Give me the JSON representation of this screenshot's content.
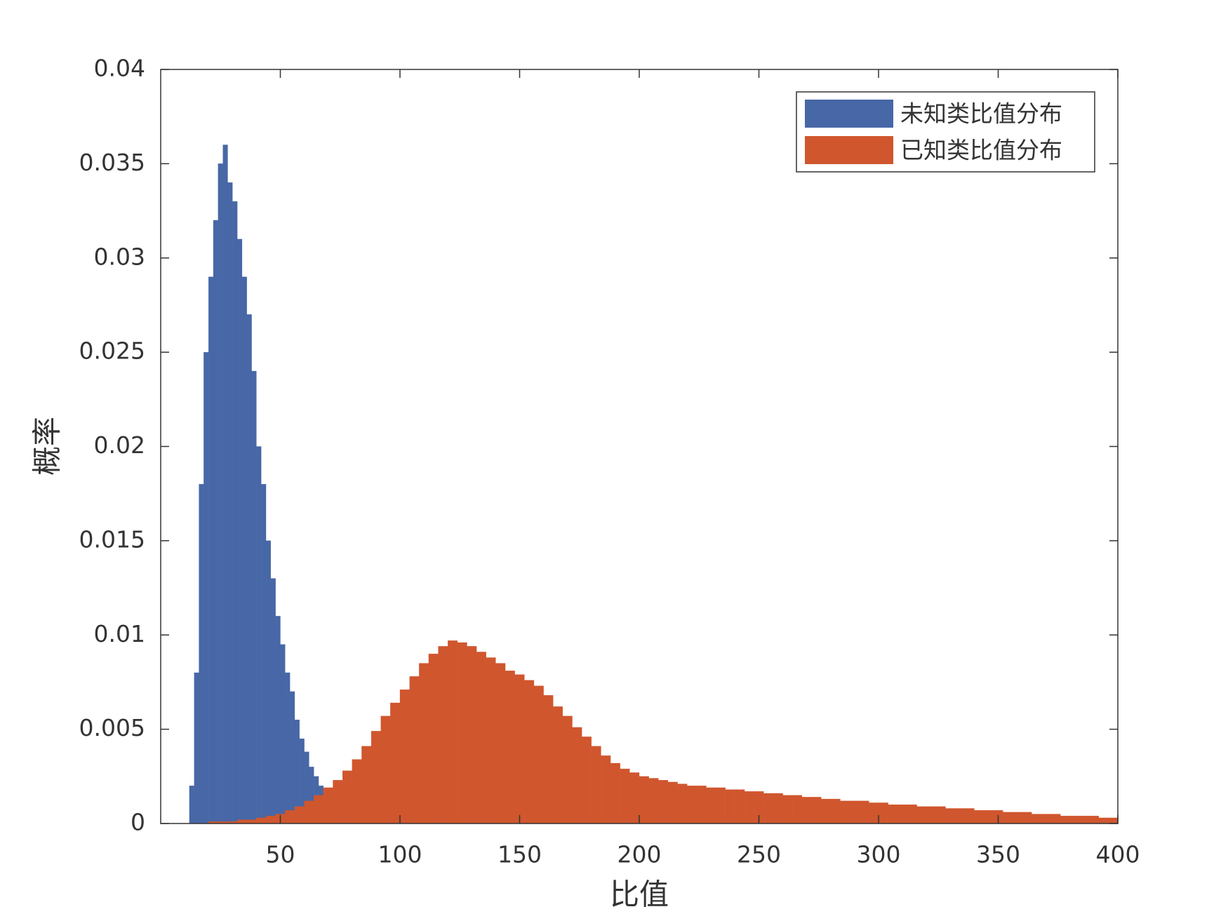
{
  "chart_data": {
    "type": "histogram",
    "xlabel": "比值",
    "ylabel": "概率",
    "xlim": [
      0,
      400
    ],
    "xticks": [
      50,
      100,
      150,
      200,
      250,
      300,
      350,
      400
    ],
    "ylim": [
      0,
      0.04
    ],
    "yticks": [
      0,
      0.005,
      0.01,
      0.015,
      0.02,
      0.025,
      0.03,
      0.035,
      0.04
    ],
    "legend": "upper right",
    "series": [
      {
        "name": "未知类比值分布",
        "color": "#4767a6",
        "bins": [
          12,
          14,
          16,
          18,
          20,
          22,
          24,
          26,
          28,
          30,
          32,
          34,
          36,
          38,
          40,
          42,
          44,
          46,
          48,
          50,
          52,
          54,
          56,
          58,
          60,
          62,
          64,
          66,
          68,
          70
        ],
        "values": [
          0.002,
          0.008,
          0.018,
          0.025,
          0.029,
          0.032,
          0.035,
          0.036,
          0.034,
          0.033,
          0.031,
          0.029,
          0.027,
          0.024,
          0.02,
          0.018,
          0.015,
          0.013,
          0.011,
          0.0095,
          0.008,
          0.007,
          0.0055,
          0.0045,
          0.0038,
          0.003,
          0.0025,
          0.002,
          0.0015
        ]
      },
      {
        "name": "已知类比值分布",
        "color": "#d0562e",
        "bins": [
          20,
          24,
          28,
          32,
          36,
          40,
          44,
          48,
          52,
          56,
          60,
          64,
          68,
          72,
          76,
          80,
          84,
          88,
          92,
          96,
          100,
          104,
          108,
          112,
          116,
          120,
          124,
          128,
          132,
          136,
          140,
          144,
          148,
          152,
          156,
          160,
          164,
          168,
          172,
          176,
          180,
          184,
          188,
          192,
          196,
          200,
          204,
          208,
          212,
          216,
          220,
          224,
          228,
          232,
          236,
          240,
          244,
          248,
          252,
          256,
          260,
          264,
          268,
          272,
          276,
          280,
          284,
          288,
          292,
          296,
          300,
          304,
          308,
          312,
          316,
          320,
          324,
          328,
          332,
          336,
          340,
          344,
          348,
          352,
          356,
          360,
          364,
          368,
          372,
          376,
          380,
          384,
          388,
          392,
          396,
          400
        ],
        "values": [
          0.0001,
          0.0001,
          0.0001,
          0.0002,
          0.0002,
          0.0003,
          0.0004,
          0.0005,
          0.0007,
          0.0009,
          0.0012,
          0.0015,
          0.0019,
          0.0023,
          0.0028,
          0.0034,
          0.0041,
          0.0049,
          0.0057,
          0.0064,
          0.0071,
          0.0078,
          0.0085,
          0.009,
          0.0094,
          0.0097,
          0.0096,
          0.0094,
          0.0091,
          0.0088,
          0.0085,
          0.0081,
          0.0079,
          0.0076,
          0.0073,
          0.0068,
          0.0062,
          0.0057,
          0.0051,
          0.0046,
          0.0041,
          0.0036,
          0.0032,
          0.0029,
          0.0027,
          0.0025,
          0.0024,
          0.0023,
          0.0022,
          0.0021,
          0.002,
          0.002,
          0.0019,
          0.0019,
          0.0018,
          0.0018,
          0.0017,
          0.0017,
          0.0016,
          0.0016,
          0.0015,
          0.0015,
          0.0014,
          0.0014,
          0.0013,
          0.0013,
          0.0012,
          0.0012,
          0.0012,
          0.0011,
          0.0011,
          0.001,
          0.001,
          0.001,
          0.0009,
          0.0009,
          0.0009,
          0.0008,
          0.0008,
          0.0008,
          0.0007,
          0.0007,
          0.0007,
          0.0006,
          0.0006,
          0.0006,
          0.0005,
          0.0005,
          0.0005,
          0.0004,
          0.0004,
          0.0004,
          0.0004,
          0.0003,
          0.0003
        ]
      }
    ]
  }
}
